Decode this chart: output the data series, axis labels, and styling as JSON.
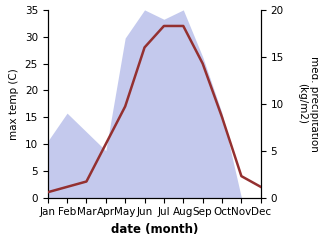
{
  "months": [
    "Jan",
    "Feb",
    "Mar",
    "Apr",
    "May",
    "Jun",
    "Jul",
    "Aug",
    "Sep",
    "Oct",
    "Nov",
    "Dec"
  ],
  "month_x": [
    1,
    2,
    3,
    4,
    5,
    6,
    7,
    8,
    9,
    10,
    11,
    12
  ],
  "precipitation": [
    6,
    9,
    7,
    5,
    17,
    20,
    19,
    20,
    15,
    9,
    0,
    0
  ],
  "max_temp": [
    1,
    2,
    3,
    10,
    17,
    28,
    32,
    32,
    25,
    15,
    4,
    2
  ],
  "precip_ylim": [
    0,
    20
  ],
  "temp_ylim": [
    0,
    35
  ],
  "temp_color": "#943030",
  "precip_fill_color": "#b0b8e8",
  "precip_fill_alpha": 0.75,
  "xlabel": "date (month)",
  "ylabel_left": "max temp (C)",
  "ylabel_right": "med. precipitation\n(kg/m2)",
  "yticks_left": [
    0,
    5,
    10,
    15,
    20,
    25,
    30,
    35
  ],
  "yticks_right": [
    0,
    5,
    10,
    15,
    20
  ],
  "tick_fontsize": 7.5,
  "label_fontsize": 8.5,
  "linewidth": 1.8
}
